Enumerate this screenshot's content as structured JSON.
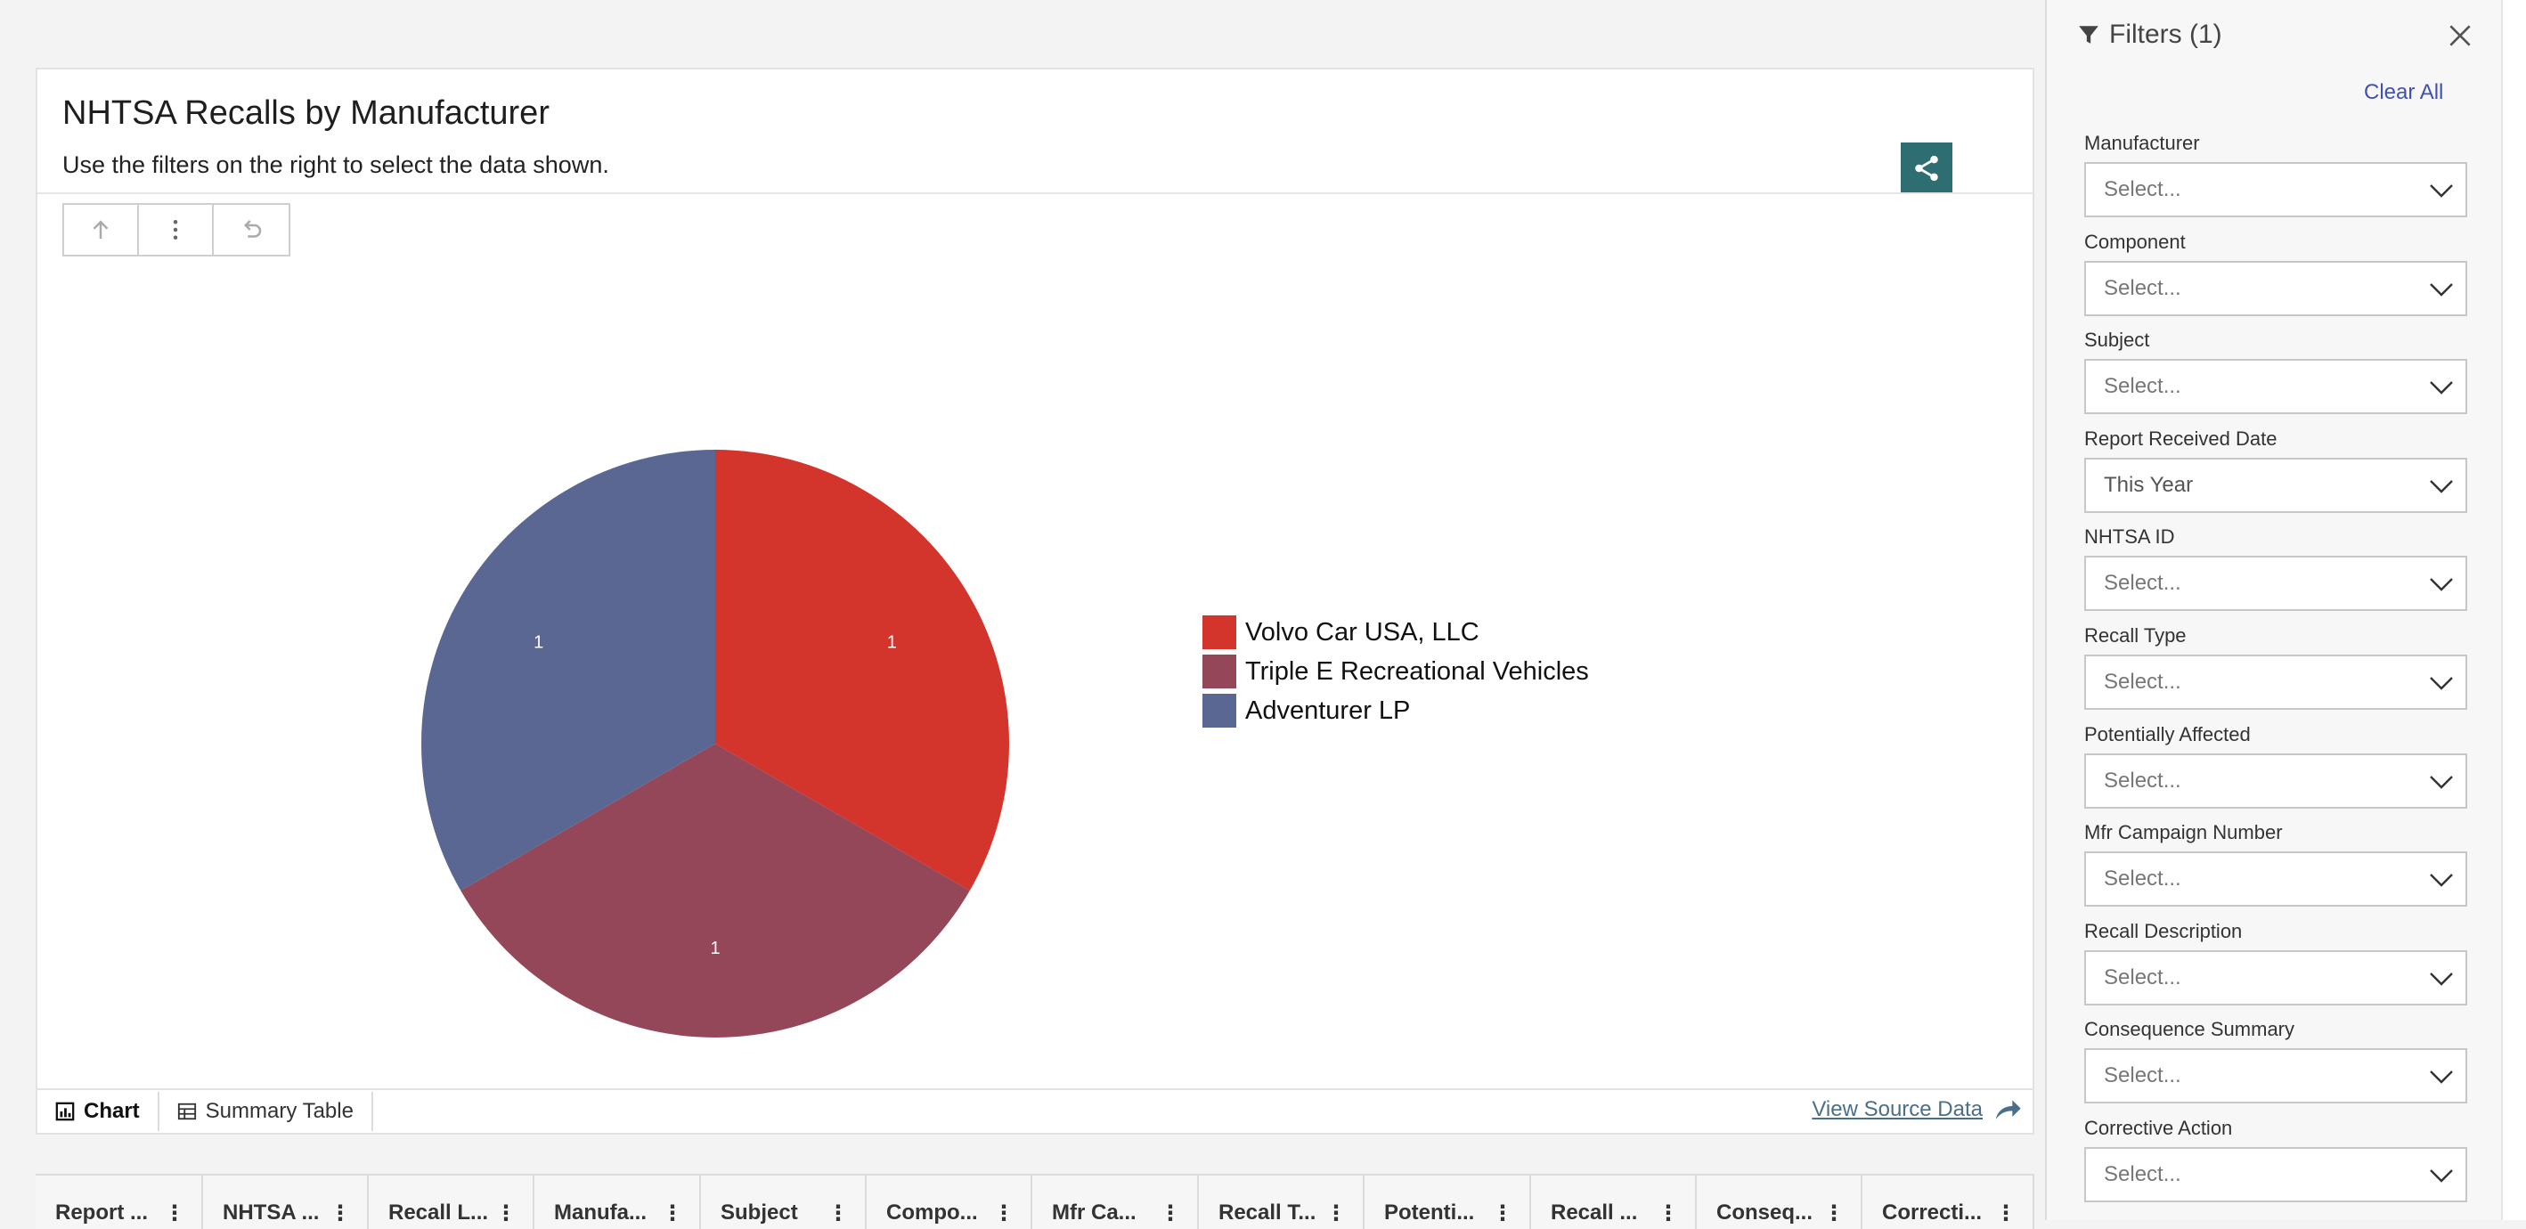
{
  "card": {
    "title": "NHTSA Recalls by Manufacturer",
    "subtitle": "Use the filters on the right to select the data shown."
  },
  "toolbar": {
    "icons": [
      "arrow-up-icon",
      "more-vertical-icon",
      "undo-icon"
    ]
  },
  "chart_data": {
    "type": "pie",
    "slices": [
      {
        "label": "Volvo Car USA, LLC",
        "value": 1,
        "color": "#d3342c"
      },
      {
        "label": "Triple E Recreational Vehicles",
        "value": 1,
        "color": "#944759"
      },
      {
        "label": "Adventurer LP",
        "value": 1,
        "color": "#5b6793"
      }
    ],
    "legend_position": "right"
  },
  "tabs": [
    {
      "label": "Chart",
      "icon": "chart-icon",
      "active": true
    },
    {
      "label": "Summary Table",
      "icon": "table-icon",
      "active": false
    }
  ],
  "view_source": {
    "label": "View Source Data",
    "icon": "share-arrow-icon"
  },
  "table": {
    "columns": [
      "Report ...",
      "NHTSA ...",
      "Recall L...",
      "Manufa...",
      "Subject",
      "Compo...",
      "Mfr Ca...",
      "Recall T...",
      "Potenti...",
      "Recall ...",
      "Conseq...",
      "Correcti..."
    ]
  },
  "filters_panel": {
    "title": "Filters (1)",
    "clear_all": "Clear All",
    "filters": [
      {
        "label": "Manufacturer",
        "value": "Select..."
      },
      {
        "label": "Component",
        "value": "Select..."
      },
      {
        "label": "Subject",
        "value": "Select..."
      },
      {
        "label": "Report Received Date",
        "value": "This Year"
      },
      {
        "label": "NHTSA ID",
        "value": "Select..."
      },
      {
        "label": "Recall Type",
        "value": "Select..."
      },
      {
        "label": "Potentially Affected",
        "value": "Select..."
      },
      {
        "label": "Mfr Campaign Number",
        "value": "Select..."
      },
      {
        "label": "Recall Description",
        "value": "Select..."
      },
      {
        "label": "Consequence Summary",
        "value": "Select..."
      },
      {
        "label": "Corrective Action",
        "value": "Select..."
      }
    ]
  },
  "colors": {
    "share_button": "#2e6e73",
    "clear_all": "#3f51b5",
    "link": "#4a6f8a"
  }
}
